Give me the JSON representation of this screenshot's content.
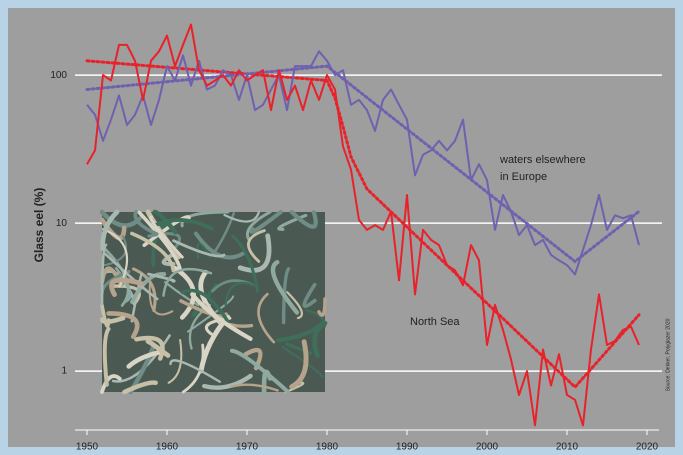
{
  "chart_data": {
    "type": "line",
    "y_label": "Glass eel (%)",
    "log_scale_y": true,
    "grid": true,
    "xlim": [
      1948.5,
      2021.5
    ],
    "xticks": [
      1950,
      1960,
      1970,
      1980,
      1990,
      2000,
      2010,
      2020
    ],
    "ylim": [
      0.4,
      230
    ],
    "yticks": [
      1,
      10,
      100
    ],
    "annotations": [
      "waters elsewhere",
      "in Europe",
      "North Sea",
      "Source: Dekker, Polyglazer 2020"
    ],
    "x": [
      1950,
      1951,
      1952,
      1953,
      1954,
      1955,
      1956,
      1957,
      1958,
      1959,
      1960,
      1961,
      1962,
      1963,
      1964,
      1965,
      1966,
      1967,
      1968,
      1969,
      1970,
      1971,
      1972,
      1973,
      1974,
      1975,
      1976,
      1977,
      1978,
      1979,
      1980,
      1981,
      1982,
      1983,
      1984,
      1985,
      1986,
      1987,
      1988,
      1989,
      1990,
      1991,
      1992,
      1993,
      1994,
      1995,
      1996,
      1997,
      1998,
      1999,
      2000,
      2001,
      2002,
      2003,
      2004,
      2005,
      2006,
      2007,
      2008,
      2009,
      2010,
      2011,
      2012,
      2013,
      2014,
      2015,
      2016,
      2017,
      2018,
      2019
    ],
    "series": [
      {
        "color": "#e8222a",
        "values": [
          25,
          31,
          100,
          92,
          160,
          160,
          125,
          68,
          125,
          145,
          185,
          115,
          160,
          220,
          108,
          85,
          92,
          100,
          85,
          108,
          92,
          100,
          108,
          58,
          108,
          68,
          85,
          58,
          92,
          68,
          100,
          80,
          33,
          23,
          10.5,
          9,
          9.7,
          9,
          12,
          4.1,
          15.5,
          3.3,
          9,
          7.7,
          7.1,
          5.2,
          4.8,
          3.8,
          7.1,
          5.6,
          1.5,
          2.8,
          1.9,
          1.2,
          0.69,
          1.0,
          0.43,
          1.4,
          0.8,
          1.3,
          0.69,
          0.64,
          0.43,
          1.4,
          3.3,
          1.5,
          1.6,
          1.9,
          2.0,
          1.5
        ]
      },
      {
        "color": "#7060b0",
        "values": [
          63,
          54,
          36,
          50,
          73,
          46,
          54,
          73,
          46,
          68,
          115,
          92,
          136,
          85,
          125,
          80,
          85,
          108,
          100,
          68,
          100,
          58,
          63,
          80,
          100,
          58,
          115,
          115,
          115,
          145,
          125,
          100,
          108,
          63,
          68,
          58,
          42,
          68,
          80,
          63,
          50,
          21,
          29,
          31,
          36,
          31,
          36,
          50,
          19.5,
          25,
          19.5,
          9,
          15.5,
          12,
          8.3,
          9.7,
          7.1,
          7.7,
          6.1,
          5.6,
          5.2,
          4.5,
          6.6,
          9.7,
          15.5,
          9,
          11.3,
          10.8,
          11.3,
          7.1
        ]
      }
    ],
    "trends": [
      {
        "color": "#e8222a",
        "x": [
          1950,
          1980,
          1981,
          1982,
          1983,
          1985,
          2011,
          2019
        ],
        "values": [
          125,
          92,
          70,
          45,
          28,
          17,
          0.78,
          2.4
        ]
      },
      {
        "color": "#7060b0",
        "x": [
          1950,
          1980,
          2011,
          2019
        ],
        "values": [
          80,
          115,
          5.5,
          12
        ]
      }
    ]
  }
}
